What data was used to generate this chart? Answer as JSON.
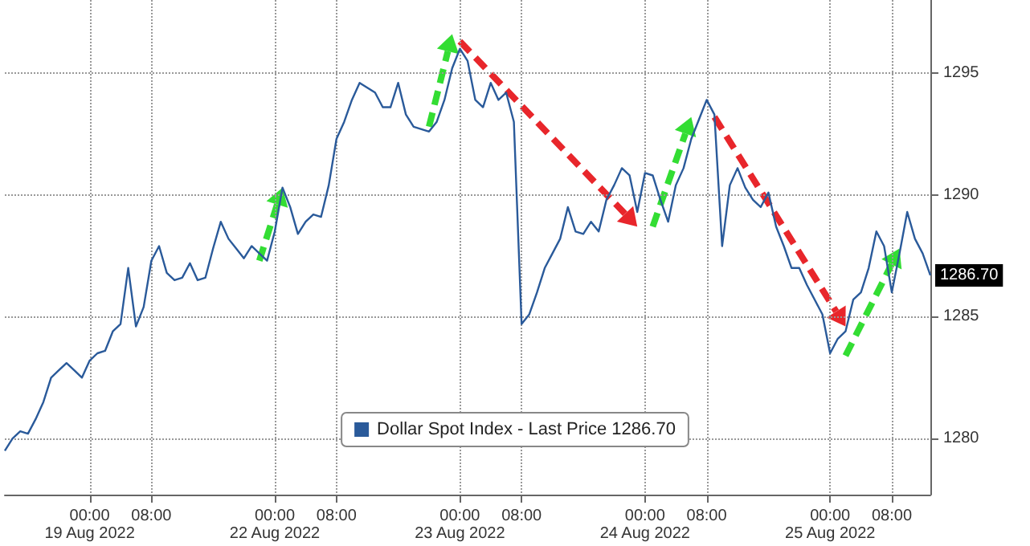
{
  "chart_data": {
    "type": "line",
    "legend": "bottom",
    "grid": true,
    "categories": [
      null,
      null,
      null,
      null,
      null,
      null,
      null,
      null,
      null,
      null,
      null,
      "00:00\n19 Aug 2022",
      null,
      null,
      null,
      null,
      null,
      null,
      null,
      "08:00",
      null,
      null,
      null,
      null,
      null,
      null,
      null,
      null,
      null,
      null,
      null,
      null,
      null,
      null,
      null,
      "00:00\n22 Aug 2022",
      null,
      null,
      null,
      null,
      null,
      null,
      null,
      "08:00",
      null,
      null,
      null,
      null,
      null,
      null,
      null,
      null,
      null,
      null,
      null,
      null,
      null,
      null,
      null,
      "00:00\n23 Aug 2022",
      null,
      null,
      null,
      null,
      null,
      null,
      null,
      "08:00",
      null,
      null,
      null,
      null,
      null,
      null,
      null,
      null,
      null,
      null,
      null,
      null,
      null,
      null,
      null,
      "00:00\n24 Aug 2022",
      null,
      null,
      null,
      null,
      null,
      null,
      null,
      "08:00",
      null,
      null,
      null,
      null,
      null,
      null,
      null,
      null,
      null,
      null,
      null,
      null,
      null,
      null,
      null,
      "00:00\n25 Aug 2022",
      null,
      null,
      null,
      null,
      null,
      null,
      null,
      "08:00",
      null,
      null,
      null,
      null,
      null
    ],
    "ylim": [
      1277.7,
      1298
    ],
    "yticks": [
      1280,
      1285,
      1290,
      1295
    ],
    "annotations": [
      {
        "text": "1286.70",
        "y": 1286.7
      }
    ],
    "series": [
      {
        "name": "Dollar Spot Index - Last Price 1286.70",
        "color": "#2a5a9a",
        "values": [
          1279.5,
          1280.0,
          1280.3,
          1280.2,
          1280.8,
          1281.5,
          1282.5,
          1282.8,
          1283.1,
          1282.8,
          1282.5,
          1283.2,
          1283.5,
          1283.6,
          1284.4,
          1284.7,
          1287.0,
          1284.6,
          1285.4,
          1287.3,
          1287.9,
          1286.8,
          1286.5,
          1286.6,
          1287.2,
          1286.5,
          1286.6,
          1287.8,
          1288.9,
          1288.2,
          1287.8,
          1287.4,
          1287.9,
          1287.6,
          1287.3,
          1288.5,
          1290.3,
          1289.5,
          1288.4,
          1288.9,
          1289.2,
          1289.1,
          1290.4,
          1292.3,
          1293.0,
          1293.9,
          1294.6,
          1294.4,
          1294.2,
          1293.6,
          1293.6,
          1294.6,
          1293.3,
          1292.8,
          1292.7,
          1292.6,
          1293.0,
          1293.9,
          1295.2,
          1296.0,
          1295.5,
          1293.9,
          1293.6,
          1294.6,
          1293.9,
          1294.2,
          1293.0,
          1284.7,
          1285.1,
          1286.0,
          1287.0,
          1287.6,
          1288.2,
          1289.5,
          1288.5,
          1288.4,
          1288.9,
          1288.5,
          1289.8,
          1290.4,
          1291.1,
          1290.8,
          1289.3,
          1290.9,
          1290.8,
          1289.8,
          1288.9,
          1290.4,
          1291.1,
          1292.3,
          1293.1,
          1293.9,
          1293.3,
          1287.9,
          1290.4,
          1291.1,
          1290.3,
          1289.8,
          1289.5,
          1290.1,
          1288.7,
          1287.9,
          1287.0,
          1287.0,
          1286.3,
          1285.7,
          1285.1,
          1283.5,
          1284.1,
          1284.4,
          1285.7,
          1286.0,
          1287.0,
          1288.5,
          1287.9,
          1286.0,
          1287.6,
          1289.3,
          1288.2,
          1287.6,
          1286.7
        ]
      }
    ]
  }
}
